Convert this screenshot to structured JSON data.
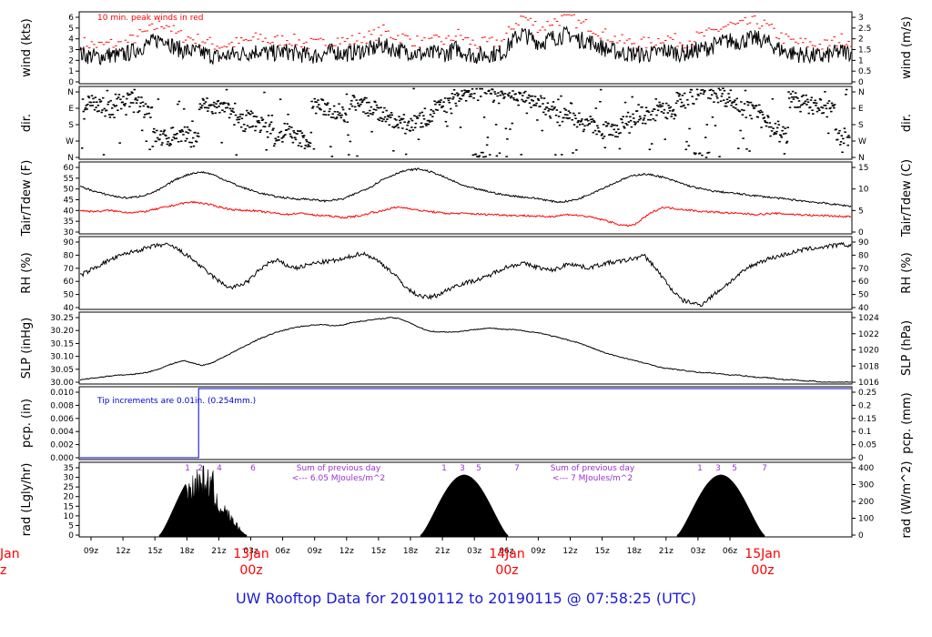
{
  "footer": {
    "title": "UW Rooftop Data for 20190112  to  20190115 @ 07:58:25  (UTC)"
  },
  "chart_data": {
    "type": "line",
    "x_axis": {
      "hour_ticks": [
        "09z",
        "12z",
        "15z",
        "18z",
        "21z",
        "03z",
        "06z",
        "09z",
        "12z",
        "15z",
        "18z",
        "21z",
        "03z",
        "06z",
        "09z",
        "12z",
        "15z",
        "18z",
        "21z",
        "03z",
        "06z"
      ],
      "day_labels": [
        {
          "date": "13Jan",
          "time": "00z"
        },
        {
          "date": "14Jan",
          "time": "00z"
        },
        {
          "date": "15Jan",
          "time": "00z"
        }
      ],
      "clipped_left_label": {
        "date": "Jan",
        "time": "z"
      }
    },
    "panels": [
      {
        "id": "wind",
        "ylabel_left": "wind (kts)",
        "ylabel_right": "wind (m/s)",
        "left_ticks": [
          "0",
          "1",
          "2",
          "3",
          "4",
          "5",
          "6"
        ],
        "right_ticks": [
          "0",
          "0.5",
          "1",
          "1.5",
          "2",
          "2.5",
          "3"
        ],
        "annotation": "10 min. peak winds in red",
        "series": [
          {
            "name": "mean wind",
            "color": "#000000",
            "values": [
              2.6,
              2.4,
              2.3,
              2.5,
              2.4,
              2.6,
              3.0,
              3.4,
              3.8,
              4.1,
              3.2,
              2.9,
              2.8,
              2.7,
              2.4,
              2.3,
              2.5,
              2.6,
              2.7,
              2.9,
              2.6,
              2.7,
              2.8,
              2.6,
              2.5,
              2.4,
              2.6,
              2.8,
              2.6,
              2.7,
              2.9,
              3.0,
              3.4,
              3.1,
              2.9,
              2.8,
              2.6,
              2.5,
              2.7,
              2.6,
              3.1,
              2.7,
              2.4,
              2.5,
              2.6,
              2.7,
              3.8,
              4.5,
              4.0,
              3.6,
              4.0,
              4.2,
              4.4,
              3.9,
              3.8,
              3.4,
              3.0,
              2.8,
              2.6,
              2.6,
              2.5,
              2.6,
              2.9,
              2.8,
              2.6,
              2.8,
              3.0,
              3.2,
              3.6,
              3.8,
              3.7,
              3.9,
              4.0,
              3.7,
              3.2,
              2.8,
              2.6,
              2.5,
              2.4,
              2.3,
              2.6,
              2.8,
              2.7
            ]
          },
          {
            "name": "10 min. peak winds",
            "color": "#ff0000",
            "values": [
              3.4,
              3.2,
              3.1,
              3.3,
              3.2,
              3.5,
              4.0,
              4.4,
              4.9,
              5.2,
              4.2,
              3.9,
              3.7,
              3.6,
              3.2,
              3.1,
              3.3,
              3.4,
              3.6,
              3.9,
              3.5,
              3.6,
              3.7,
              3.5,
              3.3,
              3.2,
              3.4,
              3.7,
              3.5,
              3.6,
              3.9,
              4.0,
              4.5,
              4.1,
              3.9,
              3.7,
              3.4,
              3.3,
              3.6,
              3.5,
              4.2,
              3.6,
              3.2,
              3.3,
              3.4,
              3.6,
              5.0,
              5.8,
              5.2,
              4.7,
              5.3,
              5.5,
              5.8,
              5.1,
              5.0,
              4.5,
              4.0,
              3.7,
              3.4,
              3.4,
              3.3,
              3.4,
              3.9,
              3.7,
              3.4,
              3.7,
              4.0,
              4.2,
              4.7,
              5.0,
              4.9,
              5.2,
              5.3,
              4.9,
              4.2,
              3.7,
              3.4,
              3.3,
              3.2,
              3.1,
              3.4,
              3.7,
              3.6
            ]
          }
        ],
        "ylim": [
          0,
          6.3
        ]
      },
      {
        "id": "dir",
        "ylabel_left": "dir.",
        "ylabel_right": "dir.",
        "left_ticks": [
          "N",
          "W",
          "S",
          "E",
          "N"
        ],
        "right_ticks": [
          "N",
          "W",
          "S",
          "E",
          "N"
        ],
        "series": [
          {
            "name": "direction",
            "color": "#000000",
            "values": [
              270,
              280,
              260,
              250,
              290,
              300,
              270,
              250,
              110,
              100,
              120,
              115,
              100,
              270,
              260,
              250,
              240,
              180,
              200,
              170,
              150,
              110,
              140,
              100,
              90,
              270,
              260,
              240,
              220,
              290,
              270,
              250,
              230,
              200,
              180,
              160,
              200,
              210,
              260,
              270,
              310,
              330,
              340,
              350,
              330,
              320,
              340,
              330,
              300,
              280,
              250,
              220,
              240,
              200,
              180,
              160,
              140,
              150,
              170,
              200,
              220,
              230,
              250,
              240,
              300,
              320,
              340,
              350,
              330,
              310,
              280,
              250,
              230,
              200,
              150,
              120,
              300,
              280,
              270,
              260,
              250,
              110,
              100
            ]
          }
        ],
        "ylim": [
          0,
          360
        ]
      },
      {
        "id": "temp",
        "ylabel_left": "Tair/Tdew (F)",
        "ylabel_right": "Tair/Tdew (C)",
        "left_ticks": [
          "30",
          "35",
          "40",
          "45",
          "50",
          "55",
          "60"
        ],
        "right_ticks": [
          "0",
          "5",
          "10",
          "15"
        ],
        "series": [
          {
            "name": "Tair",
            "color": "#000000",
            "values": [
              50,
              48.5,
              47,
              46,
              45,
              44.5,
              45,
              46,
              47.5,
              50,
              53,
              55,
              56.5,
              57,
              56,
              54,
              52,
              50,
              48.5,
              47,
              46,
              45,
              44.5,
              44,
              44,
              43.5,
              43,
              43.5,
              44,
              46,
              48,
              50,
              53,
              55,
              57,
              58,
              58.5,
              57.5,
              56,
              54,
              52,
              50,
              49,
              48,
              47,
              46,
              45.5,
              45,
              44.5,
              44,
              43,
              42.5,
              43,
              44,
              46,
              48,
              50,
              52,
              54,
              55.5,
              56,
              55.5,
              54.5,
              53,
              51.5,
              50,
              49,
              48,
              47.5,
              47,
              46.5,
              46,
              45.5,
              45,
              44.5,
              44,
              43.5,
              43,
              42.5,
              42,
              41.5,
              41,
              40.5
            ]
          },
          {
            "name": "Tdew",
            "color": "#ff0000",
            "values": [
              38.5,
              38,
              38,
              38.5,
              38,
              37.5,
              37.5,
              38,
              39,
              40,
              41,
              42,
              42.5,
              42,
              41,
              40,
              39,
              38.5,
              38.5,
              38,
              37.5,
              37,
              36.5,
              37,
              37,
              36,
              36,
              35.5,
              35,
              35.5,
              36,
              37.5,
              38,
              39.5,
              40,
              39.5,
              38.5,
              38,
              37.5,
              37,
              37,
              37,
              36.8,
              36.5,
              36.5,
              36.3,
              36,
              36,
              35.8,
              35.5,
              35.5,
              36,
              36.5,
              36,
              35.5,
              34.5,
              33.5,
              32,
              31,
              31.5,
              35,
              38,
              40,
              39.5,
              39,
              38.5,
              38,
              37.8,
              37.5,
              37.2,
              37,
              36.8,
              36.5,
              36.8,
              37,
              36.8,
              36.5,
              36.3,
              36,
              36,
              35.8,
              35.5,
              35.5
            ]
          }
        ],
        "ylim": [
          28,
          61
        ]
      },
      {
        "id": "rh",
        "ylabel_left": "RH (%)",
        "ylabel_right": "RH (%)",
        "left_ticks": [
          "40",
          "50",
          "60",
          "70",
          "80",
          "90"
        ],
        "right_ticks": [
          "40",
          "50",
          "60",
          "70",
          "80",
          "90"
        ],
        "series": [
          {
            "name": "RH",
            "color": "#000000",
            "values": [
              62,
              66,
              70,
              74,
              77,
              80,
              82,
              84,
              86,
              87,
              85,
              80,
              75,
              68,
              62,
              56,
              52,
              54,
              58,
              66,
              72,
              74,
              70,
              68,
              70,
              72,
              73,
              74,
              75,
              78,
              80,
              77,
              72,
              66,
              58,
              50,
              46,
              44,
              46,
              50,
              54,
              56,
              58,
              60,
              64,
              68,
              70,
              72,
              70,
              68,
              66,
              68,
              72,
              70,
              68,
              70,
              72,
              73,
              74,
              76,
              78,
              70,
              60,
              50,
              42,
              40,
              38,
              44,
              50,
              56,
              62,
              68,
              72,
              75,
              77,
              79,
              81,
              83,
              84,
              85,
              86,
              87,
              86
            ]
          }
        ],
        "ylim": [
          36,
          92
        ]
      },
      {
        "id": "slp",
        "ylabel_left": "SLP (inHg)",
        "ylabel_right": "SLP (hPa)",
        "left_ticks": [
          "30.00",
          "30.05",
          "30.10",
          "30.15",
          "30.20",
          "30.25"
        ],
        "right_ticks": [
          "1016",
          "1018",
          "1020",
          "1022",
          "1024"
        ],
        "series": [
          {
            "name": "SLP",
            "color": "#000000",
            "values": [
              29.99,
              29.995,
              30.0,
              30.005,
              30.01,
              30.01,
              30.015,
              30.02,
              30.03,
              30.045,
              30.06,
              30.07,
              30.06,
              30.05,
              30.06,
              30.08,
              30.1,
              30.12,
              30.14,
              30.16,
              30.175,
              30.19,
              30.2,
              30.21,
              30.215,
              30.22,
              30.22,
              30.215,
              30.22,
              30.23,
              30.235,
              30.24,
              30.245,
              30.25,
              30.245,
              30.23,
              30.21,
              30.195,
              30.19,
              30.19,
              30.19,
              30.195,
              30.2,
              30.205,
              30.205,
              30.2,
              30.2,
              30.195,
              30.19,
              30.185,
              30.175,
              30.165,
              30.155,
              30.145,
              30.13,
              30.115,
              30.1,
              30.09,
              30.08,
              30.07,
              30.06,
              30.05,
              30.04,
              30.035,
              30.03,
              30.025,
              30.02,
              30.02,
              30.015,
              30.01,
              30.01,
              30.005,
              30.0,
              30.0,
              29.995,
              29.99,
              29.99,
              29.985,
              29.985,
              29.98,
              29.98,
              29.98,
              29.98
            ]
          }
        ],
        "ylim": [
          29.98,
          30.265
        ]
      },
      {
        "id": "pcp",
        "ylabel_left": "pcp. (in)",
        "ylabel_right": "pcp. (mm)",
        "left_ticks": [
          "0.000",
          "0.002",
          "0.004",
          "0.006",
          "0.008",
          "0.010"
        ],
        "right_ticks": [
          "0",
          "0.05",
          "0.1",
          "0.15",
          "0.2",
          "0.25"
        ],
        "annotation": "Tip increments are 0.01in. (0.254mm.)",
        "series": [
          {
            "name": "precipitation",
            "color": "#0000cc",
            "steps": [
              {
                "hour": 0,
                "value": 0.0
              },
              {
                "hour": 11.5,
                "value": 0.0
              },
              {
                "hour": 11.5,
                "value": 0.01
              },
              {
                "hour": 74.8,
                "value": 0.01
              }
            ]
          }
        ],
        "ylim": [
          0,
          0.01
        ]
      },
      {
        "id": "rad",
        "ylabel_left": "rad (Lgly/hr)",
        "ylabel_right": "rad (W/m^2)",
        "left_ticks": [
          "0",
          "5",
          "10",
          "15",
          "20",
          "25",
          "30",
          "35"
        ],
        "right_ticks": [
          "0",
          "100",
          "200",
          "300",
          "400"
        ],
        "hour_markers": [
          "1",
          "2",
          "3",
          "4",
          "5",
          "6",
          "7",
          "1",
          "3",
          "5",
          "7",
          "1",
          "3",
          "5",
          "7"
        ],
        "daily_sums": [
          {
            "line1": "Sum of previous day",
            "line2": "<--- 6.05 MJoules/m^2"
          },
          {
            "line1": "Sum of previous day",
            "line2": "<--- 7 MJoules/m^2"
          }
        ],
        "series": [
          {
            "name": "solar radiation",
            "color": "#000000",
            "days": [
              {
                "peak": 34,
                "cloudy": true
              },
              {
                "peak": 30.5,
                "cloudy": false
              },
              {
                "peak": 30.5,
                "cloudy": false
              }
            ]
          }
        ],
        "ylim": [
          0,
          36
        ]
      }
    ]
  }
}
